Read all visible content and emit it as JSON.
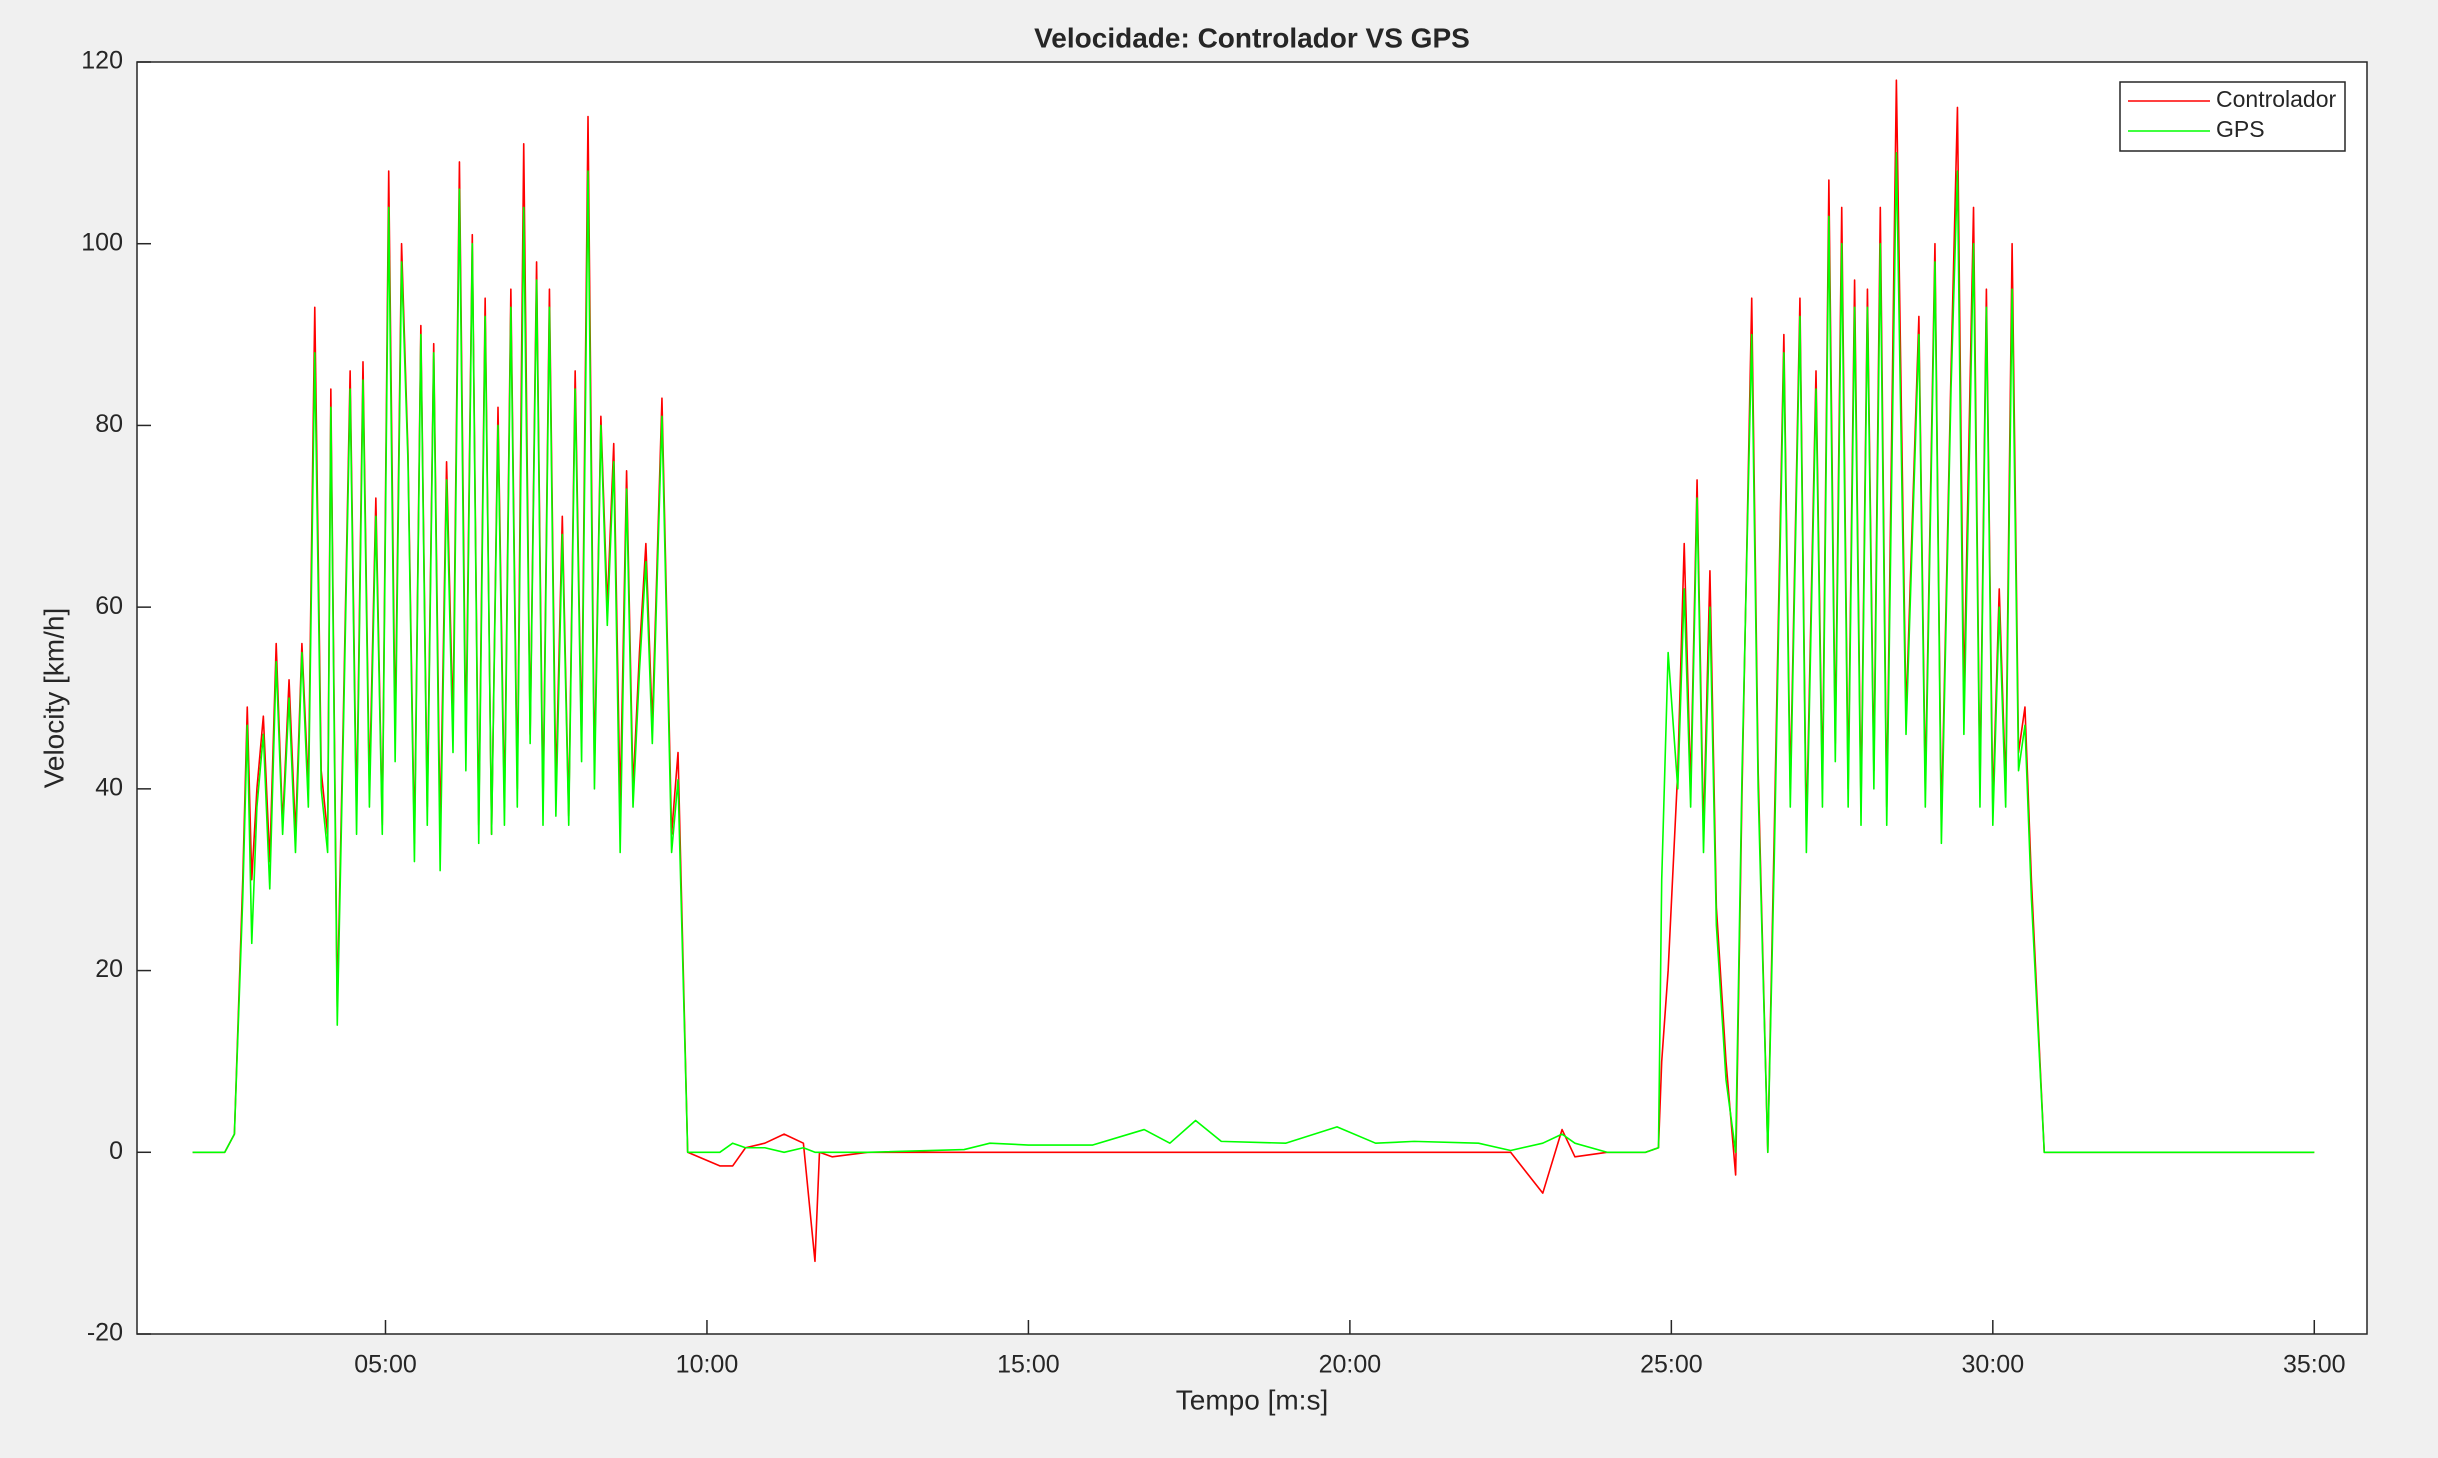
{
  "chart_data": {
    "type": "line",
    "title": "Velocidade: Controlador VS GPS",
    "xlabel": "Tempo [m:s]",
    "ylabel": "Velocity [km/h]",
    "x": [
      2.0,
      2.5,
      2.65,
      2.78,
      2.85,
      2.92,
      3.0,
      3.1,
      3.2,
      3.3,
      3.4,
      3.5,
      3.6,
      3.7,
      3.8,
      3.9,
      4.0,
      4.1,
      4.15,
      4.25,
      4.35,
      4.45,
      4.55,
      4.65,
      4.75,
      4.85,
      4.95,
      5.05,
      5.15,
      5.25,
      5.35,
      5.45,
      5.55,
      5.65,
      5.75,
      5.85,
      5.95,
      6.05,
      6.15,
      6.25,
      6.35,
      6.45,
      6.55,
      6.65,
      6.75,
      6.85,
      6.95,
      7.05,
      7.15,
      7.25,
      7.35,
      7.45,
      7.55,
      7.65,
      7.75,
      7.85,
      7.95,
      8.05,
      8.15,
      8.25,
      8.35,
      8.45,
      8.55,
      8.65,
      8.75,
      8.85,
      8.95,
      9.05,
      9.15,
      9.3,
      9.45,
      9.55,
      9.7,
      10.2,
      10.4,
      10.6,
      10.9,
      11.2,
      11.5,
      11.68,
      11.75,
      11.95,
      12.5,
      14.0,
      14.4,
      15.0,
      16.0,
      16.8,
      17.2,
      17.6,
      18.0,
      19.0,
      19.8,
      20.4,
      21.0,
      22.0,
      22.5,
      23.0,
      23.3,
      23.5,
      24.0,
      24.6,
      24.8,
      24.85,
      24.95,
      25.1,
      25.2,
      25.3,
      25.4,
      25.5,
      25.6,
      25.7,
      25.85,
      26.0,
      26.1,
      26.25,
      26.35,
      26.5,
      26.6,
      26.75,
      26.85,
      27.0,
      27.1,
      27.25,
      27.35,
      27.45,
      27.55,
      27.65,
      27.75,
      27.85,
      27.95,
      28.05,
      28.15,
      28.25,
      28.35,
      28.5,
      28.65,
      28.85,
      28.95,
      29.1,
      29.2,
      29.35,
      29.45,
      29.55,
      29.7,
      29.8,
      29.9,
      30.0,
      30.1,
      30.2,
      30.3,
      30.4,
      30.5,
      30.6,
      30.8,
      31.0,
      35.0
    ],
    "series": [
      {
        "name": "Controlador",
        "color": "#ff0000",
        "values": [
          0,
          0,
          2,
          30,
          49,
          30,
          40,
          48,
          32,
          56,
          36,
          52,
          35,
          56,
          40,
          93,
          42,
          35,
          84,
          16,
          50,
          86,
          37,
          87,
          40,
          72,
          36,
          108,
          46,
          100,
          77,
          34,
          91,
          38,
          89,
          35,
          76,
          47,
          109,
          45,
          101,
          36,
          94,
          35,
          82,
          38,
          95,
          40,
          111,
          46,
          98,
          38,
          95,
          40,
          70,
          37,
          86,
          45,
          114,
          42,
          81,
          60,
          78,
          38,
          75,
          40,
          55,
          67,
          47,
          83,
          35,
          44,
          0,
          -1.5,
          -1.5,
          0.5,
          1,
          2,
          1,
          -12,
          0,
          -0.5,
          0,
          0,
          0,
          0,
          0,
          0,
          0,
          0,
          0,
          0,
          0,
          0,
          0,
          0,
          0,
          -4.5,
          2.5,
          -0.5,
          0,
          0,
          0.5,
          10,
          20,
          42,
          67,
          40,
          74,
          35,
          64,
          27,
          10,
          -2.5,
          40,
          94,
          42,
          0,
          35,
          90,
          40,
          94,
          35,
          86,
          40,
          107,
          45,
          104,
          40,
          96,
          38,
          95,
          42,
          104,
          38,
          118,
          48,
          92,
          40,
          100,
          36,
          86,
          115,
          50,
          104,
          40,
          95,
          38,
          62,
          40,
          100,
          44,
          49,
          30,
          0,
          0,
          0
        ]
      },
      {
        "name": "GPS",
        "color": "#00ff00",
        "values": [
          0,
          0,
          2,
          28,
          47,
          23,
          38,
          46,
          29,
          54,
          35,
          50,
          33,
          55,
          38,
          88,
          40,
          33,
          82,
          14,
          48,
          84,
          35,
          85,
          38,
          70,
          35,
          104,
          43,
          98,
          76,
          32,
          90,
          36,
          88,
          31,
          74,
          44,
          106,
          42,
          100,
          34,
          92,
          35,
          80,
          36,
          93,
          38,
          104,
          45,
          96,
          36,
          93,
          37,
          68,
          36,
          84,
          43,
          108,
          40,
          80,
          58,
          76,
          33,
          73,
          38,
          53,
          65,
          45,
          81,
          33,
          41,
          0,
          0,
          1,
          0.5,
          0.5,
          0,
          0.5,
          0,
          0,
          0,
          0,
          0.3,
          1,
          0.8,
          0.8,
          2.5,
          1,
          3.5,
          1.2,
          1,
          2.8,
          1,
          1.2,
          1,
          0.2,
          1,
          2,
          1,
          0,
          0,
          0.5,
          30,
          55,
          40,
          62,
          38,
          72,
          33,
          60,
          25,
          8,
          0,
          42,
          90,
          40,
          0,
          32,
          88,
          38,
          92,
          33,
          84,
          38,
          103,
          43,
          100,
          38,
          93,
          36,
          93,
          40,
          100,
          36,
          110,
          46,
          90,
          38,
          98,
          34,
          84,
          108,
          46,
          100,
          38,
          93,
          36,
          60,
          38,
          95,
          42,
          47,
          28,
          0,
          0,
          0
        ]
      }
    ],
    "xlim": [
      1.135,
      35.82
    ],
    "ylim": [
      -20,
      120
    ],
    "xticks": [
      {
        "value": 5,
        "label": "05:00"
      },
      {
        "value": 10,
        "label": "10:00"
      },
      {
        "value": 15,
        "label": "15:00"
      },
      {
        "value": 20,
        "label": "20:00"
      },
      {
        "value": 25,
        "label": "25:00"
      },
      {
        "value": 30,
        "label": "30:00"
      },
      {
        "value": 35,
        "label": "35:00"
      }
    ],
    "yticks": [
      -20,
      0,
      20,
      40,
      60,
      80,
      100,
      120
    ],
    "grid": false,
    "legend": "top-right"
  }
}
